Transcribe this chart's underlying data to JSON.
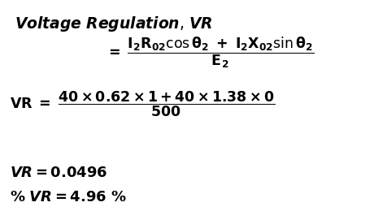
{
  "bg_color": "#ffffff",
  "text_color": "#000000",
  "fontsize_title": 13.5,
  "fontsize_formula": 12.5,
  "fontsize_result": 13.0,
  "fig_width": 4.77,
  "fig_height": 2.76,
  "dpi": 100
}
